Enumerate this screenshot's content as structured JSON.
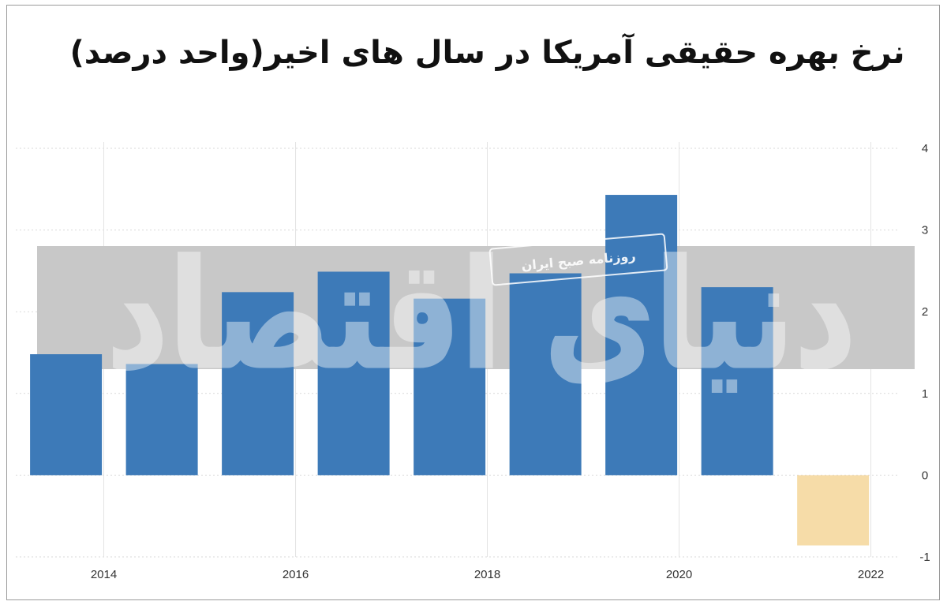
{
  "chart_data": {
    "type": "bar",
    "title": "نرخ بهره حقیقی آمریکا در  سال های اخیر(واحد درصد)",
    "xlabel": "",
    "ylabel": "",
    "ylim": [
      -1,
      4
    ],
    "yticks": [
      "-1",
      "0",
      "1",
      "2",
      "3",
      "4"
    ],
    "xlim": [
      2013,
      2022.3
    ],
    "xticks": [
      {
        "label": "2014",
        "value": 2014
      },
      {
        "label": "2016",
        "value": 2016
      },
      {
        "label": "2018",
        "value": 2018
      },
      {
        "label": "2020",
        "value": 2020
      },
      {
        "label": "2022",
        "value": 2022
      }
    ],
    "grid": true,
    "positive_color": "#3d7ab8",
    "negative_color": "#f6dca8",
    "bars": [
      {
        "x": 2013.4,
        "value": 1.48
      },
      {
        "x": 2014.4,
        "value": 1.36
      },
      {
        "x": 2015.4,
        "value": 2.24
      },
      {
        "x": 2016.4,
        "value": 2.49
      },
      {
        "x": 2017.4,
        "value": 2.16
      },
      {
        "x": 2018.4,
        "value": 2.47
      },
      {
        "x": 2019.4,
        "value": 3.43
      },
      {
        "x": 2020.4,
        "value": 2.3
      },
      {
        "x": 2021.4,
        "value": -0.86
      }
    ]
  },
  "watermark": {
    "band_color": "#c8c8c8",
    "stamp_text": "روزنامه صبح ایران",
    "logo_text": "دنیای اقتصاد"
  }
}
